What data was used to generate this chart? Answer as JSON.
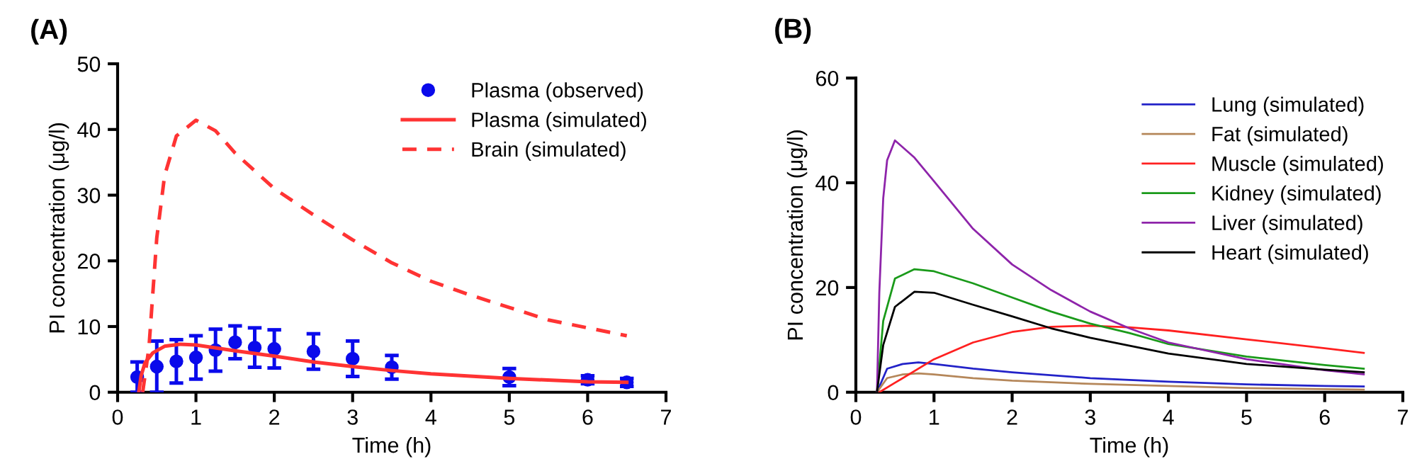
{
  "chart_data": [
    {
      "type": "line",
      "title": "(A)",
      "xlabel": "Time (h)",
      "ylabel": "PI concentration (μg/l)",
      "xlim": [
        0,
        7
      ],
      "ylim": [
        0,
        50
      ],
      "xticks": [
        0,
        1,
        2,
        3,
        4,
        5,
        6,
        7
      ],
      "yticks": [
        0,
        10,
        20,
        30,
        40,
        50
      ],
      "grid": false,
      "legend": "top right",
      "series": [
        {
          "name": "Plasma (observed)",
          "type": "scatter",
          "marker": "circle",
          "color": "#0a0aeb",
          "x": [
            0.25,
            0.5,
            0.75,
            1,
            1.25,
            1.5,
            1.75,
            2,
            2.5,
            3,
            3.5,
            5,
            6,
            6.5
          ],
          "values": [
            2.3,
            3.9,
            4.7,
            5.3,
            6.4,
            7.6,
            6.8,
            6.6,
            6.2,
            5.1,
            3.8,
            2.3,
            1.9,
            1.5
          ],
          "errors": [
            2.3,
            3.9,
            3.3,
            3.3,
            3.2,
            2.5,
            3.0,
            2.9,
            2.7,
            2.7,
            1.8,
            1.3,
            0.6,
            0.6
          ]
        },
        {
          "name": "Plasma (simulated)",
          "type": "line",
          "line_style": "solid",
          "color": "#ff3333",
          "x": [
            0.27,
            0.3,
            0.35,
            0.45,
            0.6,
            0.8,
            1,
            1.5,
            2,
            2.5,
            3,
            3.5,
            4,
            5,
            6,
            6.5
          ],
          "values": [
            0,
            2.5,
            4.5,
            6.0,
            7.0,
            7.3,
            7.2,
            6.3,
            5.5,
            4.6,
            3.9,
            3.3,
            2.8,
            2.1,
            1.6,
            1.5
          ]
        },
        {
          "name": "Brain (simulated)",
          "type": "line",
          "line_style": "dashed",
          "color": "#ff3333",
          "x": [
            0.32,
            0.4,
            0.5,
            0.6,
            0.75,
            1,
            1.25,
            1.5,
            2,
            2.5,
            3,
            3.5,
            4,
            4.5,
            5,
            5.5,
            6,
            6.5
          ],
          "values": [
            0,
            6.8,
            23.5,
            33,
            39,
            41.4,
            39.8,
            36.4,
            31,
            27,
            23.2,
            19.7,
            16.9,
            14.8,
            12.9,
            11,
            9.8,
            8.6
          ]
        }
      ]
    },
    {
      "type": "line",
      "title": "(B)",
      "xlabel": "Time (h)",
      "ylabel": "PI concentration (μg/l)",
      "xlim": [
        0,
        7
      ],
      "ylim": [
        0,
        60
      ],
      "xticks": [
        0,
        1,
        2,
        3,
        4,
        5,
        6,
        7
      ],
      "yticks": [
        0,
        20,
        40,
        60
      ],
      "grid": false,
      "legend": "top right",
      "series": [
        {
          "name": "Lung (simulated)",
          "color": "#2323c8",
          "x": [
            0.27,
            0.4,
            0.6,
            0.8,
            1,
            1.5,
            2,
            3,
            4,
            5,
            6,
            6.5
          ],
          "values": [
            0,
            4.5,
            5.4,
            5.7,
            5.4,
            4.5,
            3.8,
            2.7,
            2.0,
            1.5,
            1.2,
            1.1
          ]
        },
        {
          "name": "Fat (simulated)",
          "color": "#b5875a",
          "x": [
            0.27,
            0.4,
            0.6,
            0.8,
            1,
            1.5,
            2,
            3,
            4,
            5,
            6,
            6.5
          ],
          "values": [
            0,
            2.7,
            3.4,
            3.6,
            3.4,
            2.7,
            2.2,
            1.6,
            1.2,
            0.8,
            0.6,
            0.5
          ]
        },
        {
          "name": "Muscle (simulated)",
          "color": "#ff2020",
          "x": [
            0.3,
            0.5,
            1,
            1.5,
            2,
            2.5,
            3,
            3.5,
            4,
            5,
            6,
            6.5
          ],
          "values": [
            0,
            1.8,
            6.3,
            9.5,
            11.5,
            12.5,
            12.7,
            12.4,
            11.8,
            10.1,
            8.4,
            7.5
          ]
        },
        {
          "name": "Kidney (simulated)",
          "color": "#1a9a1a",
          "x": [
            0.27,
            0.35,
            0.5,
            0.75,
            1,
            1.5,
            2,
            2.5,
            3,
            3.5,
            4,
            5,
            6,
            6.5
          ],
          "values": [
            0,
            13.6,
            21.7,
            23.5,
            23.1,
            20.8,
            18.1,
            15.4,
            13.1,
            11.3,
            9.2,
            6.8,
            5.2,
            4.5
          ]
        },
        {
          "name": "Liver (simulated)",
          "color": "#8e24aa",
          "x": [
            0.27,
            0.3,
            0.35,
            0.4,
            0.5,
            0.75,
            1,
            1.5,
            2,
            2.5,
            3,
            3.5,
            4,
            5,
            6,
            6.5
          ],
          "values": [
            0,
            19,
            37,
            44.3,
            48.1,
            44.8,
            40.3,
            31.2,
            24.4,
            19.5,
            15.4,
            12.2,
            9.5,
            6.3,
            4.2,
            3.4
          ]
        },
        {
          "name": "Heart (simulated)",
          "color": "#000000",
          "x": [
            0.27,
            0.35,
            0.5,
            0.75,
            1,
            1.5,
            2,
            2.5,
            3,
            4,
            5,
            6,
            6.5
          ],
          "values": [
            0,
            9,
            16.3,
            19.2,
            19,
            16.7,
            14.5,
            12.2,
            10.4,
            7.4,
            5.4,
            4.3,
            3.8
          ]
        }
      ]
    }
  ]
}
